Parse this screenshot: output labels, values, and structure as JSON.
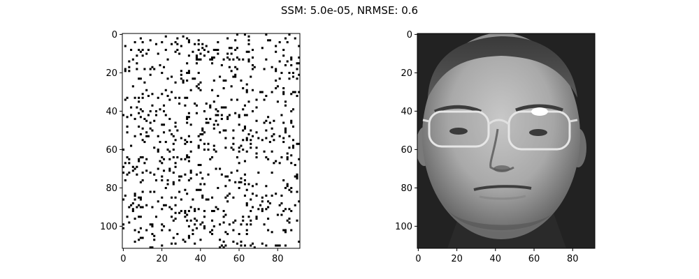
{
  "figure": {
    "title": "SSM: 5.0e-05, NRMSE: 0.6"
  },
  "chart_data": [
    {
      "type": "heatmap",
      "content": "binary noise image (black pixels on white)",
      "colormap": "gray",
      "image_size": [
        92,
        112
      ],
      "xlim": [
        -0.5,
        91.5
      ],
      "ylim": [
        111.5,
        -0.5
      ],
      "x_ticks": [
        0,
        20,
        40,
        60,
        80
      ],
      "y_ticks": [
        0,
        20,
        40,
        60,
        80,
        100
      ],
      "black_pixel_fraction": 0.07
    },
    {
      "type": "heatmap",
      "content": "grayscale face photograph with glasses",
      "colormap": "gray",
      "image_size": [
        92,
        112
      ],
      "xlim": [
        -0.5,
        91.5
      ],
      "ylim": [
        111.5,
        -0.5
      ],
      "x_ticks": [
        0,
        20,
        40,
        60,
        80
      ],
      "y_ticks": [
        0,
        20,
        40,
        60,
        80,
        100
      ]
    }
  ]
}
